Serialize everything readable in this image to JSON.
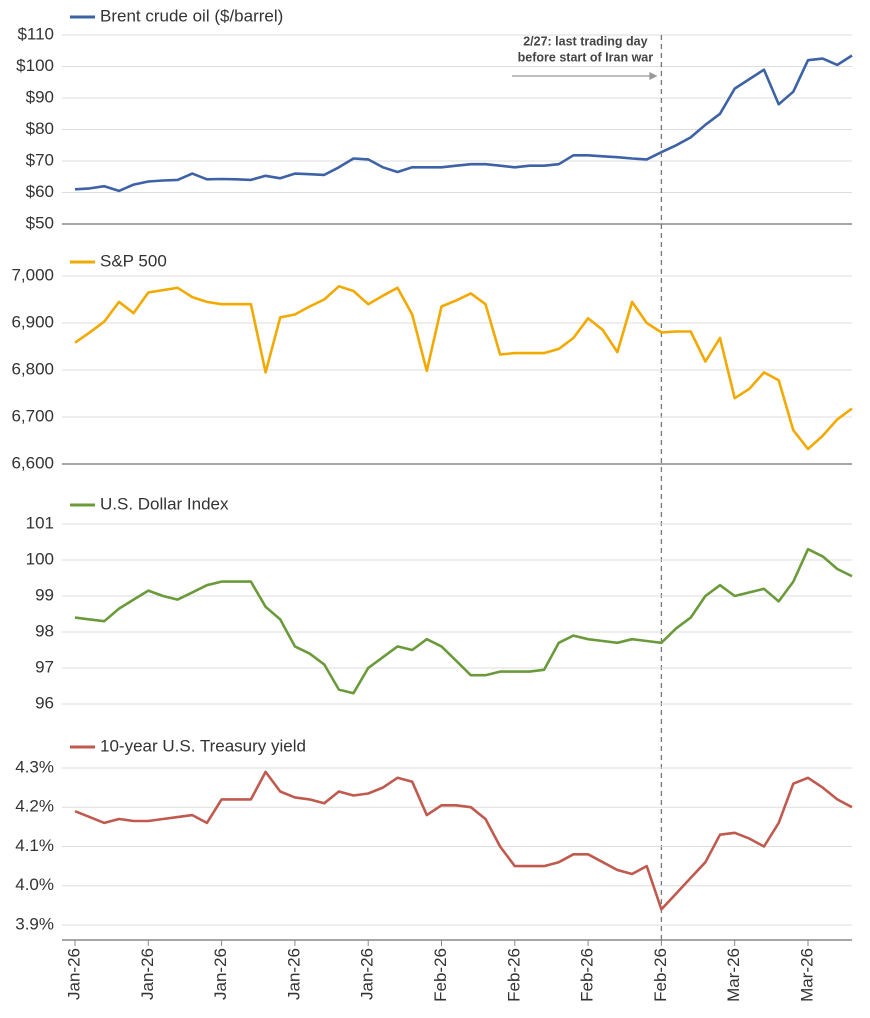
{
  "chart_data": [
    {
      "type": "line",
      "series": [
        {
          "name": "Brent crude oil ($/barrel)",
          "color": "#3d62a6",
          "values": [
            61,
            61.3,
            62,
            60.5,
            62.5,
            63.5,
            63.8,
            64,
            66,
            64.2,
            64.3,
            64.2,
            64,
            65.3,
            64.5,
            66,
            65.8,
            65.6,
            68,
            70.8,
            70.5,
            68,
            66.5,
            68,
            68,
            68,
            68.5,
            69,
            69,
            68.5,
            68,
            68.5,
            68.5,
            69,
            71.8,
            71.8,
            71.5,
            71.2,
            70.8,
            70.5,
            72.8,
            75,
            77.5,
            81.5,
            85,
            93,
            96,
            99,
            88,
            92,
            102,
            102.5,
            100.5,
            103.5
          ]
        }
      ],
      "ylim": [
        50,
        110
      ],
      "yticks": [
        {
          "value": 50,
          "label": "$50"
        },
        {
          "value": 60,
          "label": "$60"
        },
        {
          "value": 70,
          "label": "$70"
        },
        {
          "value": 80,
          "label": "$80"
        },
        {
          "value": 90,
          "label": "$90"
        },
        {
          "value": 100,
          "label": "$100"
        },
        {
          "value": 110,
          "label": "$110"
        }
      ],
      "grid": true,
      "axis_line": true,
      "annotation": {
        "text": [
          "2/27: last trading day",
          "before start of Iran war"
        ],
        "category_index": 40
      }
    },
    {
      "type": "line",
      "series": [
        {
          "name": "S&P 500",
          "color": "#f2a900",
          "values": [
            6858,
            6880,
            6903,
            6945,
            6921,
            6965,
            6970,
            6975,
            6955,
            6945,
            6940,
            6940,
            6940,
            6795,
            6912,
            6918,
            6935,
            6950,
            6978,
            6968,
            6940,
            6958,
            6975,
            6918,
            6798,
            6935,
            6948,
            6963,
            6940,
            6833,
            6836,
            6836,
            6836,
            6845,
            6868,
            6910,
            6885,
            6838,
            6945,
            6900,
            6880,
            6882,
            6882,
            6818,
            6868,
            6740,
            6760,
            6795,
            6778,
            6672,
            6632,
            6660,
            6695,
            6718
          ]
        }
      ],
      "ylim": [
        6600,
        7000
      ],
      "yticks": [
        {
          "value": 6600,
          "label": "6,600"
        },
        {
          "value": 6700,
          "label": "6,700"
        },
        {
          "value": 6800,
          "label": "6,800"
        },
        {
          "value": 6900,
          "label": "6,900"
        },
        {
          "value": 7000,
          "label": "7,000"
        }
      ],
      "grid": true,
      "axis_line": true
    },
    {
      "type": "line",
      "series": [
        {
          "name": "U.S. Dollar Index",
          "color": "#6b9a3b",
          "values": [
            98.4,
            98.35,
            98.3,
            98.65,
            98.9,
            99.15,
            99.0,
            98.9,
            99.1,
            99.3,
            99.4,
            99.4,
            99.4,
            98.7,
            98.35,
            97.6,
            97.4,
            97.1,
            96.4,
            96.3,
            97.0,
            97.3,
            97.6,
            97.5,
            97.8,
            97.6,
            97.2,
            96.8,
            96.8,
            96.9,
            96.9,
            96.9,
            96.95,
            97.7,
            97.9,
            97.8,
            97.75,
            97.7,
            97.8,
            97.75,
            97.7,
            98.1,
            98.4,
            99.0,
            99.3,
            99.0,
            99.1,
            99.2,
            98.85,
            99.4,
            100.3,
            100.1,
            99.75,
            99.55
          ]
        }
      ],
      "ylim": [
        96,
        101
      ],
      "yticks": [
        96,
        97,
        98,
        99,
        100,
        101
      ],
      "grid": true,
      "axis_line": false
    },
    {
      "type": "line",
      "categories": [
        "Jan-26",
        null,
        null,
        null,
        null,
        "Jan-26",
        null,
        null,
        null,
        null,
        "Jan-26",
        null,
        null,
        null,
        null,
        "Jan-26",
        null,
        null,
        null,
        null,
        "Jan-26",
        null,
        null,
        null,
        null,
        "Feb-26",
        null,
        null,
        null,
        null,
        "Feb-26",
        null,
        null,
        null,
        null,
        "Feb-26",
        null,
        null,
        null,
        null,
        "Feb-26",
        null,
        null,
        null,
        null,
        "Mar-26",
        null,
        null,
        null,
        null,
        "Mar-26",
        null,
        null,
        null
      ],
      "series": [
        {
          "name": "10-year U.S. Treasury yield",
          "color": "#c05a4e",
          "values": [
            4.19,
            4.175,
            4.16,
            4.17,
            4.165,
            4.165,
            4.17,
            4.175,
            4.18,
            4.16,
            4.22,
            4.22,
            4.22,
            4.29,
            4.24,
            4.225,
            4.22,
            4.21,
            4.24,
            4.23,
            4.235,
            4.25,
            4.275,
            4.265,
            4.18,
            4.205,
            4.205,
            4.2,
            4.17,
            4.1,
            4.05,
            4.05,
            4.05,
            4.06,
            4.08,
            4.08,
            4.06,
            4.04,
            4.03,
            4.05,
            3.94,
            3.98,
            4.02,
            4.06,
            4.13,
            4.135,
            4.12,
            4.1,
            4.16,
            4.26,
            4.275,
            4.25,
            4.22,
            4.2
          ]
        }
      ],
      "ylim": [
        3.9,
        4.3
      ],
      "yticks": [
        {
          "value": 3.9,
          "label": "3.9%"
        },
        {
          "value": 4.0,
          "label": "4.0%"
        },
        {
          "value": 4.1,
          "label": "4.1%"
        },
        {
          "value": 4.2,
          "label": "4.2%"
        },
        {
          "value": 4.3,
          "label": "4.3%"
        }
      ],
      "grid": true,
      "axis_line": true
    }
  ]
}
